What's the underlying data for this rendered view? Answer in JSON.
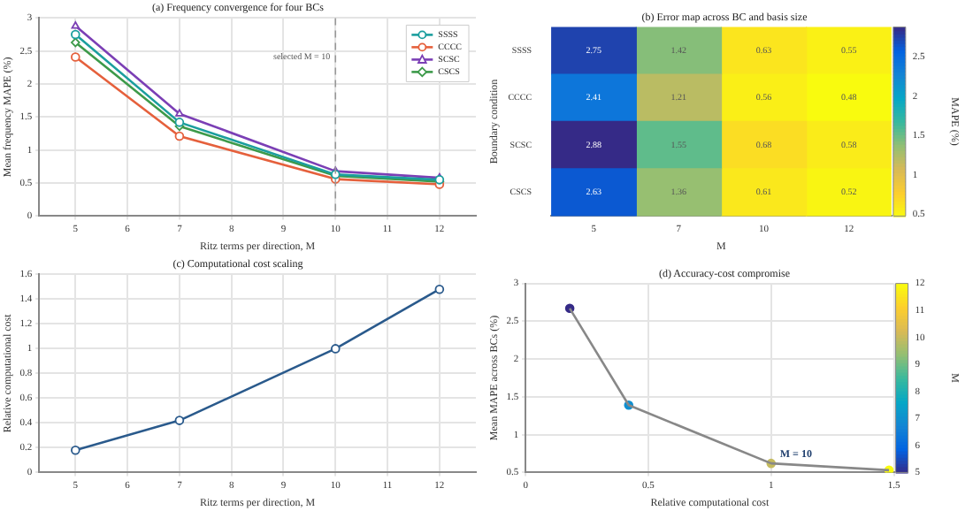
{
  "chart_data": [
    {
      "type": "line",
      "title": "(a) Frequency convergence for four BCs",
      "xlabel": "Ritz terms per direction, M",
      "ylabel": "Mean frequency MAPE (%)",
      "x": [
        5,
        7,
        10,
        12
      ],
      "xlim": [
        4.3,
        12.7
      ],
      "xticks": [
        5,
        6,
        7,
        8,
        9,
        10,
        11,
        12
      ],
      "ylim": [
        0,
        3
      ],
      "yticks": [
        0,
        0.5,
        1,
        1.5,
        2,
        2.5,
        3
      ],
      "grid": true,
      "legend": "top right",
      "series": [
        {
          "name": "SSSS",
          "color": "#1b9e9e",
          "marker": "circle",
          "values": [
            2.75,
            1.42,
            0.63,
            0.55
          ]
        },
        {
          "name": "CCCC",
          "color": "#e5603c",
          "marker": "circle",
          "values": [
            2.41,
            1.21,
            0.56,
            0.48
          ]
        },
        {
          "name": "SCSC",
          "color": "#7b3fb5",
          "marker": "triangle",
          "values": [
            2.88,
            1.55,
            0.68,
            0.58
          ]
        },
        {
          "name": "CSCS",
          "color": "#3d9a4a",
          "marker": "diamond",
          "values": [
            2.63,
            1.36,
            0.61,
            0.52
          ]
        }
      ],
      "ref_lines": [
        {
          "axis": "x",
          "value": 10,
          "label": "selected M = 10",
          "color": "#999999",
          "line_style": "dashed"
        }
      ]
    },
    {
      "type": "heatmap",
      "title": "(b) Error map across BC and basis size",
      "xlabel": "M",
      "ylabel": "Boundary condition",
      "clabel": "MAPE (%)",
      "categories": [
        "5",
        "7",
        "10",
        "12"
      ],
      "y_categories": [
        "SSSS",
        "CCCC",
        "SCSC",
        "CSCS"
      ],
      "cells": [
        [
          2.75,
          1.42,
          0.63,
          0.55
        ],
        [
          2.41,
          1.21,
          0.56,
          0.48
        ],
        [
          2.88,
          1.55,
          0.68,
          0.58
        ],
        [
          2.63,
          1.36,
          0.61,
          0.52
        ]
      ],
      "clim": [
        0.48,
        2.88
      ],
      "cticks": [
        0.5,
        1,
        1.5,
        2,
        2.5
      ],
      "data_labels": true
    },
    {
      "type": "line",
      "title": "(c) Computational cost scaling",
      "xlabel": "Ritz terms per direction, M",
      "ylabel": "Relative computational cost",
      "x": [
        5,
        7,
        10,
        12
      ],
      "xlim": [
        4.3,
        12.7
      ],
      "xticks": [
        5,
        6,
        7,
        8,
        9,
        10,
        11,
        12
      ],
      "ylim": [
        0,
        1.6
      ],
      "yticks": [
        0,
        0.2,
        0.4,
        0.6,
        0.8,
        1,
        1.2,
        1.4,
        1.6
      ],
      "grid": true,
      "marker": "circle",
      "series": [
        {
          "color": "#2a5a8c",
          "values": [
            0.18,
            0.42,
            1,
            1.48
          ]
        }
      ]
    },
    {
      "type": "scatter",
      "title": "(d) Accuracy-cost compromise",
      "xlabel": "Relative computational cost",
      "ylabel": "Mean MAPE across BCs (%)",
      "clabel": "M",
      "x": [
        0.18,
        0.42,
        1,
        1.48
      ],
      "xlim": [
        0,
        1.5
      ],
      "xticks": [
        0,
        0.5,
        1,
        1.5
      ],
      "ylim": [
        0.5,
        3
      ],
      "yticks": [
        0.5,
        1,
        1.5,
        2,
        2.5,
        3
      ],
      "grid": true,
      "marker": "circle",
      "clim": [
        5,
        12
      ],
      "cticks": [
        5,
        6,
        7,
        8,
        9,
        10,
        11,
        12
      ],
      "series": [
        {
          "type": "line",
          "color": "#888888",
          "marker": "none",
          "values": [
            2.67,
            1.39,
            0.62,
            0.53
          ]
        },
        {
          "values": [
            2.67,
            1.39,
            0.62,
            0.53
          ],
          "cvalues": [
            5,
            7,
            10,
            12
          ],
          "colors": [
            "#352a87",
            "#108fd0",
            "#c5bb5e",
            "#f9fb0e"
          ]
        }
      ],
      "annotations": [
        {
          "text": "M = 10",
          "x": 1,
          "y": 0.62
        }
      ]
    }
  ]
}
